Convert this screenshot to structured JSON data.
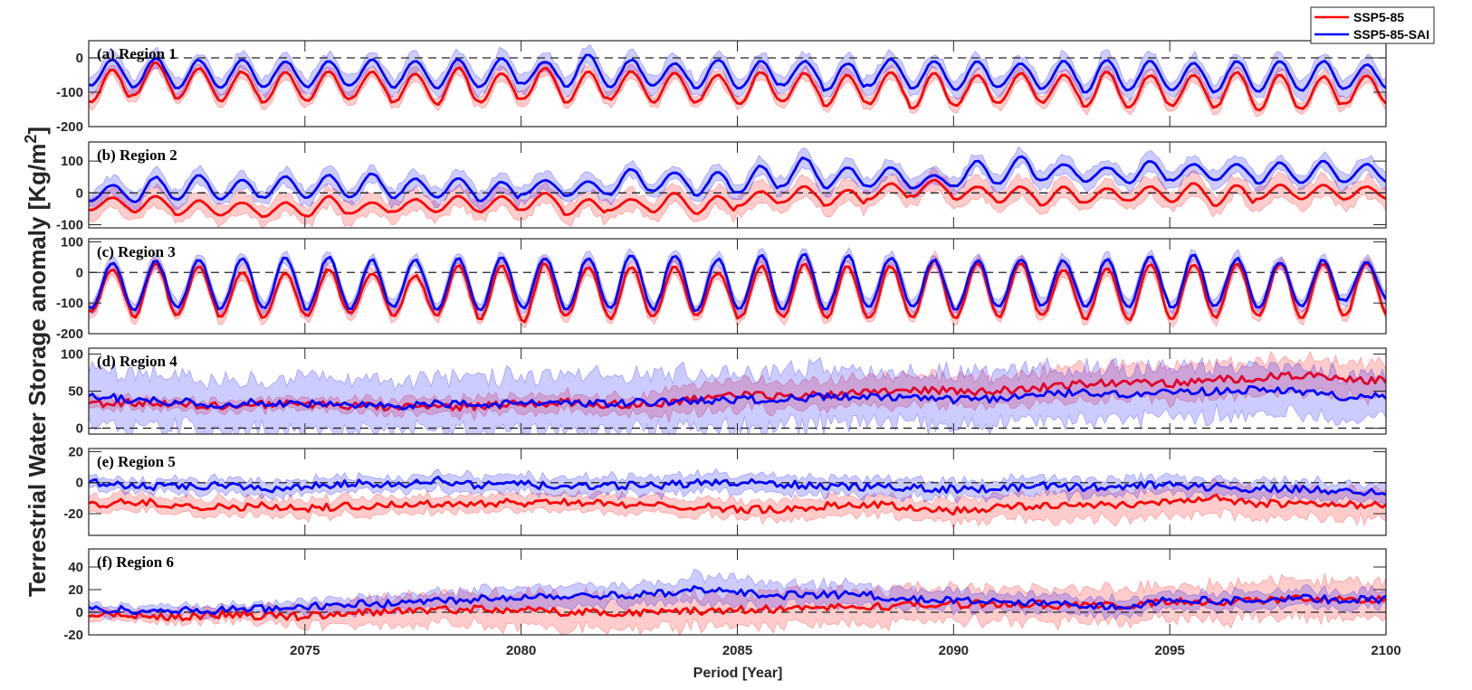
{
  "chart_data": {
    "type": "line",
    "title": "",
    "xlabel": "Period [Year]",
    "ylabel": "Terrestrial Water Storage anomaly [Kg/m",
    "ylabel_superscript": "2",
    "ylabel_suffix": "]",
    "xlim": [
      2070,
      2100
    ],
    "x_ticks": [
      2075,
      2080,
      2085,
      2090,
      2095,
      2100
    ],
    "x_tick_labels": [
      "2075",
      "2080",
      "2085",
      "2090",
      "2095",
      "2100"
    ],
    "legend": {
      "placement": "top-right",
      "entries": [
        {
          "name": "SSP5-85",
          "color": "#ff0000"
        },
        {
          "name": "SSP5-85-SAI",
          "color": "#0000ff"
        }
      ]
    },
    "reference_line": 0,
    "note": "Seasonal panels give annual peak (max) and trough (min) of the ensemble mean per year 2070-2099; noisy panels give approximate annual ensemble means. 'spread' is the approximate half-width of the shaded ensemble range.",
    "panels": [
      {
        "label": "(a) Region 1",
        "kind": "seasonal",
        "ylim": [
          -200,
          50
        ],
        "y_ticks": [
          -200,
          -100,
          0
        ],
        "y_tick_labels": [
          "-200",
          "-100",
          "0"
        ],
        "series": [
          {
            "name": "SSP5-85",
            "color": "#ff0000",
            "spread": 18,
            "peaks": [
              -35,
              -15,
              -30,
              -40,
              -40,
              -40,
              -40,
              -45,
              -30,
              -45,
              -30,
              -40,
              -40,
              -45,
              -50,
              -40,
              -45,
              -50,
              -40,
              -45,
              -50,
              -45,
              -50,
              -40,
              -50,
              -50,
              -40,
              -50,
              -55,
              -50
            ],
            "troughs": [
              -130,
              -110,
              -120,
              -125,
              -130,
              -125,
              -120,
              -130,
              -135,
              -130,
              -120,
              -130,
              -120,
              -130,
              -130,
              -135,
              -125,
              -140,
              -135,
              -150,
              -140,
              -130,
              -130,
              -145,
              -145,
              -140,
              -145,
              -155,
              -150,
              -135
            ]
          },
          {
            "name": "SSP5-85-SAI",
            "color": "#0000ff",
            "spread": 25,
            "peaks": [
              -5,
              0,
              -5,
              -5,
              -10,
              -10,
              -5,
              -10,
              -5,
              0,
              -10,
              10,
              -5,
              -15,
              -5,
              -10,
              -10,
              -15,
              -5,
              -10,
              -10,
              -15,
              -10,
              -5,
              -10,
              -15,
              -10,
              -10,
              -10,
              -20
            ],
            "troughs": [
              -80,
              -85,
              -90,
              -85,
              -85,
              -85,
              -80,
              -85,
              -90,
              -85,
              -75,
              -85,
              -85,
              -80,
              -90,
              -90,
              -80,
              -95,
              -80,
              -90,
              -95,
              -85,
              -90,
              -100,
              -95,
              -95,
              -100,
              -100,
              -95,
              -90
            ]
          }
        ]
      },
      {
        "label": "(b) Region 2",
        "kind": "seasonal",
        "ylim": [
          -110,
          160
        ],
        "y_ticks": [
          -100,
          0,
          100
        ],
        "y_tick_labels": [
          "-100",
          "0",
          "100"
        ],
        "series": [
          {
            "name": "SSP5-85",
            "color": "#ff0000",
            "spread": 30,
            "peaks": [
              -15,
              -10,
              -25,
              -30,
              -30,
              -10,
              -30,
              -20,
              -10,
              -10,
              0,
              -20,
              -20,
              0,
              -10,
              5,
              20,
              10,
              30,
              40,
              20,
              20,
              20,
              15,
              20,
              30,
              25,
              25,
              25,
              20
            ],
            "troughs": [
              -55,
              -60,
              -70,
              -70,
              -75,
              -75,
              -65,
              -60,
              -60,
              -60,
              -55,
              -70,
              -55,
              -60,
              -65,
              -40,
              -30,
              -40,
              -20,
              -10,
              -20,
              -30,
              -40,
              -30,
              -25,
              -30,
              -40,
              -20,
              -20,
              -20
            ]
          },
          {
            "name": "SSP5-85-SAI",
            "color": "#0000ff",
            "spread": 25,
            "peaks": [
              25,
              50,
              55,
              40,
              50,
              55,
              60,
              45,
              45,
              35,
              40,
              35,
              75,
              65,
              65,
              85,
              110,
              80,
              80,
              55,
              100,
              115,
              90,
              80,
              100,
              90,
              90,
              95,
              100,
              90
            ],
            "troughs": [
              -25,
              -30,
              -20,
              -20,
              -15,
              -15,
              -15,
              -15,
              -15,
              -25,
              -5,
              -10,
              -5,
              5,
              -10,
              0,
              20,
              15,
              20,
              15,
              20,
              30,
              40,
              35,
              30,
              40,
              40,
              30,
              30,
              35
            ]
          }
        ]
      },
      {
        "label": "(c) Region 3",
        "kind": "seasonal",
        "ylim": [
          -200,
          110
        ],
        "y_ticks": [
          -200,
          -100,
          0,
          100
        ],
        "y_tick_labels": [
          "-200",
          "-100",
          "0",
          "100"
        ],
        "series": [
          {
            "name": "SSP5-85",
            "color": "#ff0000",
            "spread": 20,
            "peaks": [
              10,
              30,
              20,
              0,
              0,
              10,
              0,
              -10,
              20,
              20,
              30,
              20,
              20,
              20,
              0,
              20,
              30,
              20,
              20,
              40,
              30,
              30,
              10,
              10,
              30,
              30,
              30,
              30,
              30,
              30
            ],
            "troughs": [
              -130,
              -145,
              -140,
              -145,
              -150,
              -140,
              -130,
              -140,
              -140,
              -150,
              -160,
              -140,
              -150,
              -145,
              -140,
              -150,
              -145,
              -150,
              -150,
              -150,
              -150,
              -145,
              -140,
              -150,
              -155,
              -150,
              -150,
              -145,
              -150,
              -140
            ]
          },
          {
            "name": "SSP5-85-SAI",
            "color": "#0000ff",
            "spread": 20,
            "peaks": [
              30,
              40,
              40,
              50,
              50,
              50,
              40,
              40,
              45,
              50,
              50,
              50,
              60,
              55,
              45,
              55,
              60,
              55,
              50,
              40,
              40,
              45,
              40,
              40,
              50,
              55,
              45,
              35,
              40,
              35
            ],
            "troughs": [
              -120,
              -120,
              -115,
              -120,
              -115,
              -120,
              -120,
              -110,
              -120,
              -120,
              -115,
              -120,
              -120,
              -120,
              -125,
              -120,
              -120,
              -120,
              -110,
              -115,
              -120,
              -110,
              -110,
              -115,
              -110,
              -120,
              -110,
              -115,
              -110,
              -90
            ]
          }
        ]
      },
      {
        "label": "(d) Region 4",
        "kind": "noisy",
        "ylim": [
          -8,
          108
        ],
        "y_ticks": [
          0,
          50,
          100
        ],
        "y_tick_labels": [
          "0",
          "50",
          "100"
        ],
        "series": [
          {
            "name": "SSP5-85",
            "color": "#e0002a",
            "spread": [
              8,
              8,
              8,
              8,
              8,
              8,
              10,
              12,
              12,
              12,
              12,
              12,
              12,
              20,
              20,
              20,
              20,
              20,
              22,
              22,
              22,
              22,
              25,
              25,
              25,
              25,
              25,
              25,
              25,
              25
            ],
            "means": [
              33,
              35,
              32,
              30,
              32,
              33,
              30,
              28,
              28,
              30,
              33,
              35,
              32,
              32,
              40,
              45,
              43,
              45,
              50,
              52,
              50,
              50,
              55,
              60,
              62,
              60,
              65,
              68,
              72,
              65
            ]
          },
          {
            "name": "SSP5-85-SAI",
            "color": "#0000ff",
            "spread": [
              40,
              40,
              38,
              38,
              38,
              40,
              40,
              38,
              38,
              40,
              40,
              40,
              40,
              42,
              40,
              42,
              42,
              40,
              40,
              40,
              38,
              38,
              38,
              38,
              38,
              36,
              35,
              35,
              34,
              33
            ],
            "means": [
              45,
              38,
              36,
              32,
              35,
              33,
              30,
              30,
              33,
              32,
              33,
              35,
              33,
              35,
              38,
              38,
              40,
              42,
              42,
              40,
              38,
              40,
              45,
              48,
              46,
              48,
              50,
              52,
              50,
              42
            ]
          }
        ]
      },
      {
        "label": "(e) Region 5",
        "kind": "noisy",
        "ylim": [
          -34,
          22
        ],
        "y_ticks": [
          -20,
          0,
          20
        ],
        "y_tick_labels": [
          "-20",
          "0",
          "20"
        ],
        "series": [
          {
            "name": "SSP5-85",
            "color": "#ff0000",
            "spread": [
              6,
              6,
              6,
              6,
              6,
              6,
              6,
              6,
              6,
              6,
              6,
              6,
              6,
              6,
              6,
              6,
              7,
              7,
              7,
              7,
              8,
              8,
              10,
              10,
              10,
              10,
              10,
              10,
              10,
              10
            ],
            "means": [
              -15,
              -12,
              -14,
              -16,
              -15,
              -17,
              -15,
              -14,
              -14,
              -13,
              -13,
              -12,
              -14,
              -15,
              -15,
              -17,
              -18,
              -15,
              -14,
              -16,
              -18,
              -16,
              -15,
              -14,
              -14,
              -12,
              -10,
              -14,
              -13,
              -14
            ]
          },
          {
            "name": "SSP5-85-SAI",
            "color": "#0000ff",
            "spread": [
              4,
              4,
              5,
              5,
              5,
              5,
              5,
              5,
              6,
              6,
              6,
              6,
              6,
              6,
              6,
              6,
              6,
              6,
              6,
              6,
              6,
              6,
              6,
              6,
              6,
              6,
              6,
              6,
              6,
              6
            ],
            "means": [
              0,
              -2,
              -3,
              -2,
              -4,
              -3,
              0,
              -2,
              2,
              -2,
              -1,
              -3,
              -2,
              -2,
              0,
              0,
              -1,
              -2,
              -3,
              -3,
              -4,
              -4,
              -2,
              -3,
              -2,
              -1,
              -3,
              -4,
              -4,
              -6
            ]
          }
        ]
      },
      {
        "label": "(f) Region 6",
        "kind": "noisy",
        "ylim": [
          -20,
          56
        ],
        "y_ticks": [
          -20,
          0,
          20,
          40
        ],
        "y_tick_labels": [
          "-20",
          "0",
          "20",
          "40"
        ],
        "series": [
          {
            "name": "SSP5-85",
            "color": "#ff0000",
            "spread": [
              5,
              5,
              6,
              6,
              8,
              10,
              12,
              14,
              15,
              16,
              16,
              16,
              16,
              16,
              16,
              16,
              16,
              16,
              16,
              16,
              16,
              16,
              16,
              16,
              16,
              16,
              18,
              18,
              18,
              18
            ],
            "means": [
              -1,
              -3,
              -4,
              -2,
              -3,
              -4,
              0,
              1,
              2,
              3,
              2,
              0,
              0,
              0,
              1,
              2,
              3,
              4,
              5,
              6,
              7,
              8,
              7,
              6,
              5,
              10,
              9,
              10,
              12,
              11
            ]
          },
          {
            "name": "SSP5-85-SAI",
            "color": "#0000ff",
            "spread": [
              5,
              5,
              5,
              5,
              6,
              7,
              8,
              8,
              9,
              10,
              10,
              10,
              10,
              10,
              14,
              12,
              10,
              10,
              10,
              9,
              9,
              8,
              8,
              8,
              8,
              8,
              8,
              8,
              8,
              8
            ],
            "means": [
              3,
              2,
              1,
              2,
              3,
              5,
              7,
              8,
              10,
              12,
              14,
              15,
              15,
              16,
              20,
              17,
              15,
              16,
              15,
              12,
              10,
              9,
              8,
              6,
              5,
              12,
              10,
              11,
              12,
              11
            ]
          }
        ]
      }
    ]
  }
}
